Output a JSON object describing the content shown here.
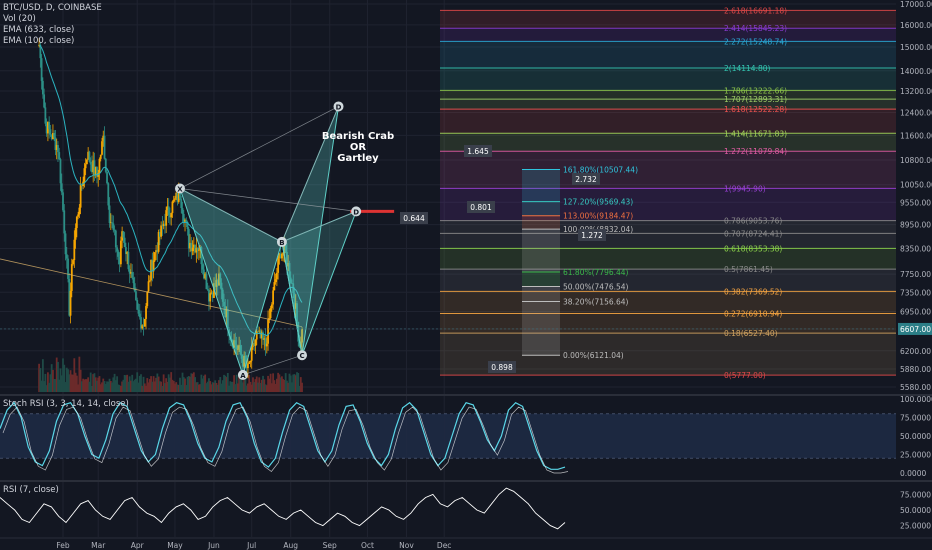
{
  "legend": {
    "symbol": "BTC/USD, D, COINBASE",
    "vol": "Vol (20)",
    "ema1": "EMA (633, close)",
    "ema2": "EMA (100, close)"
  },
  "title": "Bearish Crab\nOR\nGartley",
  "stoch_label": "Stoch RSI (3, 3, 14, 14, close)",
  "rsi_label": "RSI (7, close)",
  "price_now": "6607.00",
  "colors": {
    "bg": "#131722",
    "up": "#f7a600",
    "down": "#2c8f86",
    "ema": "#2bb3c0",
    "grid": "#1f2330",
    "pattern": "#5fd0c8",
    "stoch": "#5ad7e8",
    "rsi": "#ffffff"
  },
  "chart_data": [
    {
      "type": "candlestick",
      "title": "BTC/USD, D, COINBASE",
      "y_scale": "log",
      "ylim": [
        5500,
        17200
      ],
      "y_ticks": [
        "17000.00",
        "16000.00",
        "15000.00",
        "14000.00",
        "13200.00",
        "12400.00",
        "11600.00",
        "10800.00",
        "10050.00",
        "9550.00",
        "8950.00",
        "8350.00",
        "7750.00",
        "7350.00",
        "6950.00",
        "6607.00",
        "6200.00",
        "5880.00",
        "5580.00"
      ],
      "x_ticks": [
        "Feb",
        "Mar",
        "Apr",
        "May",
        "Jun",
        "Jul",
        "Aug",
        "Sep",
        "Oct",
        "Nov",
        "Dec"
      ],
      "price_anchors": [
        {
          "x": "Jan 13",
          "y": 15100
        },
        {
          "x": "Jan 18",
          "y": 12000
        },
        {
          "x": "Jan 28",
          "y": 11200
        },
        {
          "x": "Feb 6",
          "y": 7000
        },
        {
          "x": "Feb 10",
          "y": 8600
        },
        {
          "x": "Feb 20",
          "y": 11000
        },
        {
          "x": "Feb 28",
          "y": 10300
        },
        {
          "x": "Mar 5",
          "y": 11500
        },
        {
          "x": "Mar 10",
          "y": 9200
        },
        {
          "x": "Mar 18",
          "y": 8000
        },
        {
          "x": "Mar 20",
          "y": 8800
        },
        {
          "x": "Apr 1",
          "y": 6900
        },
        {
          "x": "Apr 6",
          "y": 6700
        },
        {
          "x": "Apr 12",
          "y": 7900
        },
        {
          "x": "Apr 24",
          "y": 9200
        },
        {
          "x": "May 5",
          "y": 9800
        },
        {
          "x": "May 12",
          "y": 8500
        },
        {
          "x": "May 20",
          "y": 8400
        },
        {
          "x": "May 28",
          "y": 7300
        },
        {
          "x": "Jun 5",
          "y": 7600
        },
        {
          "x": "Jun 14",
          "y": 6500
        },
        {
          "x": "Jun 28",
          "y": 5850
        },
        {
          "x": "Jul 5",
          "y": 6500
        },
        {
          "x": "Jul 12",
          "y": 6300
        },
        {
          "x": "Jul 18",
          "y": 7300
        },
        {
          "x": "Jul 24",
          "y": 8300
        },
        {
          "x": "Jul 28",
          "y": 8200
        },
        {
          "x": "Aug 3",
          "y": 7400
        },
        {
          "x": "Aug 8",
          "y": 6300
        },
        {
          "x": "Aug 10",
          "y": 6607
        }
      ],
      "pattern_points": [
        {
          "label": "X",
          "x": "May 5",
          "y": 9940
        },
        {
          "label": "A",
          "x": "Jun 24",
          "y": 5780
        },
        {
          "label": "B",
          "x": "Jul 25",
          "y": 8510
        },
        {
          "label": "C",
          "x": "Aug 10",
          "y": 6121
        },
        {
          "label": "D",
          "x": "Sep 22",
          "y": 9300
        },
        {
          "label": "D",
          "x": "Sep 8",
          "y": 12620
        }
      ],
      "pattern_ratios": [
        "1.645",
        "0.644",
        "0.801",
        "0.898",
        "2.732",
        "1.272"
      ],
      "fib_extension": [
        {
          "label": "2.618(16691.18)",
          "value": 16691.18,
          "color": "#e04848"
        },
        {
          "label": "2.414(15845.23)",
          "value": 15845.23,
          "color": "#8a3bd1"
        },
        {
          "label": "2.272(15248.74)",
          "value": 15248.74,
          "color": "#2aa9d6"
        },
        {
          "label": "2(14114.80)",
          "value": 14114.8,
          "color": "#33c4b0"
        },
        {
          "label": "1.786(13222.66)",
          "value": 13222.66,
          "color": "#8bc34a"
        },
        {
          "label": "1.707(12893.31)",
          "value": 12893.31,
          "color": "#9ccc65"
        },
        {
          "label": "1.618(12522.28)",
          "value": 12522.28,
          "color": "#ef5350"
        },
        {
          "label": "1.414(11671.83)",
          "value": 11671.83,
          "color": "#a5d65a"
        },
        {
          "label": "1.272(11079.84)",
          "value": 11079.84,
          "color": "#e05ca3"
        },
        {
          "label": "1(9945.90)",
          "value": 9945.9,
          "color": "#9a40d6"
        },
        {
          "label": "0.786(9053.76)",
          "value": 9053.76,
          "color": "#8a8a8a"
        },
        {
          "label": "0.707(8724.41)",
          "value": 8724.41,
          "color": "#8a8a8a"
        },
        {
          "label": "0.618(8353.38)",
          "value": 8353.38,
          "color": "#8bd24a"
        },
        {
          "label": "0.5(7861.45)",
          "value": 7861.45,
          "color": "#8a8a8a"
        },
        {
          "label": "0.382(7369.52)",
          "value": 7369.52,
          "color": "#f4a340"
        },
        {
          "label": "0.272(6910.94)",
          "value": 6910.94,
          "color": "#f4a340"
        },
        {
          "label": "0.18(6527.40)",
          "value": 6527.4,
          "color": "#cfa15f"
        },
        {
          "label": "0(5777.00)",
          "value": 5777.0,
          "color": "#e04848"
        }
      ],
      "fib_retracement": [
        {
          "label": "161.80%(10507.44)",
          "value": 10507.44,
          "color": "#2fc4dd"
        },
        {
          "label": "127.20%(9569.43)",
          "value": 9569.43,
          "color": "#36c9c0"
        },
        {
          "label": "113.00%(9184.47)",
          "value": 9184.47,
          "color": "#f07040"
        },
        {
          "label": "100.00%(8832.04)",
          "value": 8832.04,
          "color": "#bdbdbd"
        },
        {
          "label": "61.80%(7796.44)",
          "value": 7796.44,
          "color": "#3bb94a"
        },
        {
          "label": "50.00%(7476.54)",
          "value": 7476.54,
          "color": "#bdbdbd"
        },
        {
          "label": "38.20%(7156.64)",
          "value": 7156.64,
          "color": "#bdbdbd"
        },
        {
          "label": "0.00%(6121.04)",
          "value": 6121.04,
          "color": "#bdbdbd"
        }
      ]
    },
    {
      "type": "line",
      "title": "Stoch RSI (3, 3, 14, 14, close)",
      "ylim": [
        0,
        100
      ],
      "y_ticks": [
        "100.0000",
        "75.0000",
        "50.0000",
        "25.0000",
        "0.0000"
      ],
      "values": [
        60,
        85,
        95,
        75,
        35,
        15,
        10,
        30,
        70,
        92,
        95,
        80,
        50,
        25,
        20,
        45,
        80,
        95,
        90,
        60,
        30,
        15,
        25,
        60,
        88,
        95,
        92,
        70,
        40,
        20,
        15,
        35,
        70,
        92,
        95,
        75,
        40,
        15,
        8,
        20,
        55,
        85,
        95,
        90,
        60,
        30,
        15,
        30,
        65,
        90,
        92,
        70,
        40,
        20,
        10,
        25,
        60,
        88,
        95,
        85,
        55,
        25,
        10,
        20,
        50,
        80,
        95,
        92,
        70,
        45,
        30,
        50,
        85,
        95,
        90,
        60,
        30,
        10,
        5,
        5,
        8
      ]
    },
    {
      "type": "line",
      "title": "RSI (7, close)",
      "ylim": [
        10,
        90
      ],
      "y_ticks": [
        "75.0000",
        "50.0000",
        "25.0000"
      ],
      "values": [
        70,
        60,
        50,
        35,
        30,
        45,
        60,
        55,
        40,
        30,
        45,
        60,
        65,
        50,
        40,
        35,
        50,
        65,
        70,
        55,
        45,
        40,
        30,
        45,
        55,
        60,
        50,
        35,
        40,
        55,
        65,
        70,
        60,
        50,
        45,
        55,
        60,
        50,
        40,
        35,
        45,
        50,
        40,
        30,
        25,
        35,
        45,
        40,
        30,
        25,
        35,
        45,
        55,
        50,
        40,
        35,
        45,
        60,
        70,
        75,
        60,
        55,
        65,
        70,
        60,
        50,
        45,
        60,
        75,
        85,
        80,
        70,
        60,
        45,
        35,
        25,
        20,
        30
      ]
    }
  ]
}
